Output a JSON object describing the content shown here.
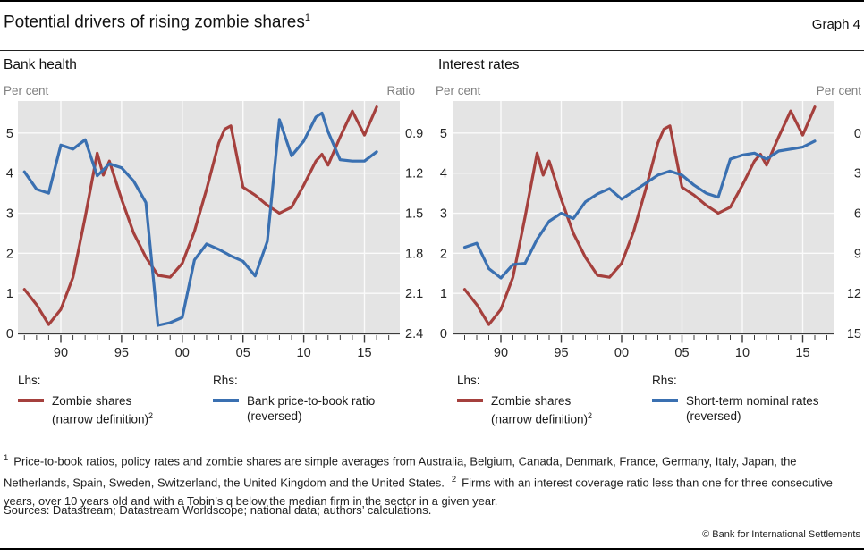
{
  "header": {
    "title": "Potential drivers of rising zombie shares",
    "title_sup": "1",
    "graph_label": "Graph 4"
  },
  "panels": [
    {
      "subtitle": "Bank health",
      "legend": {
        "lhs_label": "Lhs:",
        "rhs_label": "Rhs:",
        "lhs_entry": {
          "line1": "Zombie shares",
          "line2": "(narrow definition)",
          "line2_sup": "2"
        },
        "rhs_entry": {
          "line1": "Bank price-to-book ratio",
          "line2": "(reversed)"
        }
      }
    },
    {
      "subtitle": "Interest rates",
      "legend": {
        "lhs_label": "Lhs:",
        "rhs_label": "Rhs:",
        "lhs_entry": {
          "line1": "Zombie shares",
          "line2": "(narrow definition)",
          "line2_sup": "2"
        },
        "rhs_entry": {
          "line1": "Short-term nominal rates",
          "line2": "(reversed)"
        }
      }
    }
  ],
  "chart_data": [
    {
      "type": "line",
      "title": "Bank health",
      "x_tick_labels": [
        "90",
        "95",
        "00",
        "05",
        "10",
        "15"
      ],
      "x_tick_years": [
        1990,
        1995,
        2000,
        2005,
        2010,
        2015
      ],
      "x_minor_range": [
        1987,
        2017
      ],
      "y_left": {
        "label": "Per cent",
        "ticks": [
          "0",
          "1",
          "2",
          "3",
          "4",
          "5"
        ],
        "min": 0,
        "max": 5,
        "plot_max": 5.8
      },
      "y_right": {
        "label": "Ratio",
        "ticks": [
          "2.4",
          "2.1",
          "1.8",
          "1.5",
          "1.2",
          "0.9"
        ],
        "bottom": 2.4,
        "top": 0.9,
        "reversed": true
      },
      "grid": true,
      "legend_position": "below",
      "series": [
        {
          "name": "Zombie shares (narrow definition)",
          "slug": "zombie-shares-line",
          "axis": "left",
          "color": "#A5403D",
          "points": [
            [
              1987,
              1.1
            ],
            [
              1988,
              0.72
            ],
            [
              1989,
              0.22
            ],
            [
              1990,
              0.6
            ],
            [
              1991,
              1.4
            ],
            [
              1992,
              2.9
            ],
            [
              1993,
              4.5
            ],
            [
              1993.5,
              3.95
            ],
            [
              1994,
              4.3
            ],
            [
              1995,
              3.35
            ],
            [
              1996,
              2.5
            ],
            [
              1997,
              1.9
            ],
            [
              1998,
              1.45
            ],
            [
              1999,
              1.4
            ],
            [
              2000,
              1.75
            ],
            [
              2001,
              2.55
            ],
            [
              2002,
              3.6
            ],
            [
              2003,
              4.75
            ],
            [
              2003.5,
              5.1
            ],
            [
              2004,
              5.18
            ],
            [
              2005,
              3.65
            ],
            [
              2006,
              3.45
            ],
            [
              2007,
              3.2
            ],
            [
              2008,
              3.0
            ],
            [
              2009,
              3.15
            ],
            [
              2010,
              3.7
            ],
            [
              2011,
              4.3
            ],
            [
              2011.5,
              4.47
            ],
            [
              2012,
              4.2
            ],
            [
              2013,
              4.9
            ],
            [
              2014,
              5.55
            ],
            [
              2015,
              4.95
            ],
            [
              2016,
              5.65
            ]
          ]
        },
        {
          "name": "Bank price-to-book ratio (reversed)",
          "slug": "bank-price-to-book-line",
          "axis": "right",
          "color": "#3A70B1",
          "points": [
            [
              1987,
              1.19
            ],
            [
              1988,
              1.32
            ],
            [
              1989,
              1.35
            ],
            [
              1990,
              0.99
            ],
            [
              1991,
              1.02
            ],
            [
              1992,
              0.95
            ],
            [
              1993,
              1.22
            ],
            [
              1994,
              1.13
            ],
            [
              1995,
              1.16
            ],
            [
              1996,
              1.26
            ],
            [
              1997,
              1.42
            ],
            [
              1998,
              2.34
            ],
            [
              1999,
              2.32
            ],
            [
              2000,
              2.28
            ],
            [
              2001,
              1.85
            ],
            [
              2002,
              1.73
            ],
            [
              2003,
              1.77
            ],
            [
              2004,
              1.82
            ],
            [
              2005,
              1.86
            ],
            [
              2006,
              1.97
            ],
            [
              2007,
              1.71
            ],
            [
              2008,
              0.8
            ],
            [
              2009,
              1.07
            ],
            [
              2010,
              0.96
            ],
            [
              2011,
              0.78
            ],
            [
              2011.5,
              0.75
            ],
            [
              2012,
              0.89
            ],
            [
              2013,
              1.1
            ],
            [
              2014,
              1.11
            ],
            [
              2015,
              1.11
            ],
            [
              2016,
              1.04
            ]
          ]
        }
      ]
    },
    {
      "type": "line",
      "title": "Interest rates",
      "x_tick_labels": [
        "90",
        "95",
        "00",
        "05",
        "10",
        "15"
      ],
      "x_tick_years": [
        1990,
        1995,
        2000,
        2005,
        2010,
        2015
      ],
      "x_minor_range": [
        1987,
        2017
      ],
      "y_left": {
        "label": "Per cent",
        "ticks": [
          "0",
          "1",
          "2",
          "3",
          "4",
          "5"
        ],
        "min": 0,
        "max": 5,
        "plot_max": 5.8
      },
      "y_right": {
        "label": "Per cent",
        "ticks": [
          "15",
          "12",
          "9",
          "6",
          "3",
          "0"
        ],
        "bottom": 15,
        "top": 0,
        "reversed": true
      },
      "grid": true,
      "legend_position": "below",
      "series": [
        {
          "name": "Zombie shares (narrow definition)",
          "slug": "zombie-shares-line",
          "axis": "left",
          "color": "#A5403D",
          "points": [
            [
              1987,
              1.1
            ],
            [
              1988,
              0.72
            ],
            [
              1989,
              0.22
            ],
            [
              1990,
              0.6
            ],
            [
              1991,
              1.4
            ],
            [
              1992,
              2.9
            ],
            [
              1993,
              4.5
            ],
            [
              1993.5,
              3.95
            ],
            [
              1994,
              4.3
            ],
            [
              1995,
              3.35
            ],
            [
              1996,
              2.5
            ],
            [
              1997,
              1.9
            ],
            [
              1998,
              1.45
            ],
            [
              1999,
              1.4
            ],
            [
              2000,
              1.75
            ],
            [
              2001,
              2.55
            ],
            [
              2002,
              3.6
            ],
            [
              2003,
              4.75
            ],
            [
              2003.5,
              5.1
            ],
            [
              2004,
              5.18
            ],
            [
              2005,
              3.65
            ],
            [
              2006,
              3.45
            ],
            [
              2007,
              3.2
            ],
            [
              2008,
              3.0
            ],
            [
              2009,
              3.15
            ],
            [
              2010,
              3.7
            ],
            [
              2011,
              4.3
            ],
            [
              2011.5,
              4.47
            ],
            [
              2012,
              4.2
            ],
            [
              2013,
              4.9
            ],
            [
              2014,
              5.55
            ],
            [
              2015,
              4.95
            ],
            [
              2016,
              5.65
            ]
          ]
        },
        {
          "name": "Short-term nominal rates (reversed)",
          "slug": "short-term-rates-line",
          "axis": "right",
          "color": "#3A70B1",
          "points": [
            [
              1987,
              8.55
            ],
            [
              1988,
              8.25
            ],
            [
              1989,
              10.15
            ],
            [
              1990,
              10.85
            ],
            [
              1991,
              9.85
            ],
            [
              1992,
              9.75
            ],
            [
              1993,
              7.95
            ],
            [
              1994,
              6.6
            ],
            [
              1995,
              6.0
            ],
            [
              1996,
              6.4
            ],
            [
              1997,
              5.15
            ],
            [
              1998,
              4.55
            ],
            [
              1999,
              4.15
            ],
            [
              2000,
              4.95
            ],
            [
              2001,
              4.35
            ],
            [
              2002,
              3.75
            ],
            [
              2003,
              3.15
            ],
            [
              2004,
              2.85
            ],
            [
              2005,
              3.15
            ],
            [
              2006,
              3.9
            ],
            [
              2007,
              4.5
            ],
            [
              2008,
              4.8
            ],
            [
              2009,
              1.95
            ],
            [
              2010,
              1.65
            ],
            [
              2011,
              1.5
            ],
            [
              2012,
              1.95
            ],
            [
              2013,
              1.35
            ],
            [
              2014,
              1.2
            ],
            [
              2015,
              1.05
            ],
            [
              2016,
              0.6
            ]
          ]
        }
      ]
    }
  ],
  "footnotes": {
    "fn1_sup": "1",
    "fn1_text": "Price-to-book ratios, policy rates and zombie shares are simple averages from Australia, Belgium, Canada, Denmark, France, Germany, Italy, Japan, the Netherlands, Spain, Sweden, Switzerland, the United Kingdom and the United States.",
    "fn2_sup": "2",
    "fn2_text": "Firms with an interest coverage ratio less than one for three consecutive years, over 10 years old and with a Tobin’s q below the median firm in the sector in a given year."
  },
  "sources": "Sources: Datastream; Datastream Worldscope; national data; authors’ calculations.",
  "copyright": "© Bank for International Settlements",
  "colors": {
    "red": "#A5403D",
    "blue": "#3A70B1",
    "plot_bg": "#E4E4E4",
    "grid": "#FBFBFB",
    "axis": "#3C3C3C",
    "tick_text": "#262626",
    "muted": "#808080"
  }
}
